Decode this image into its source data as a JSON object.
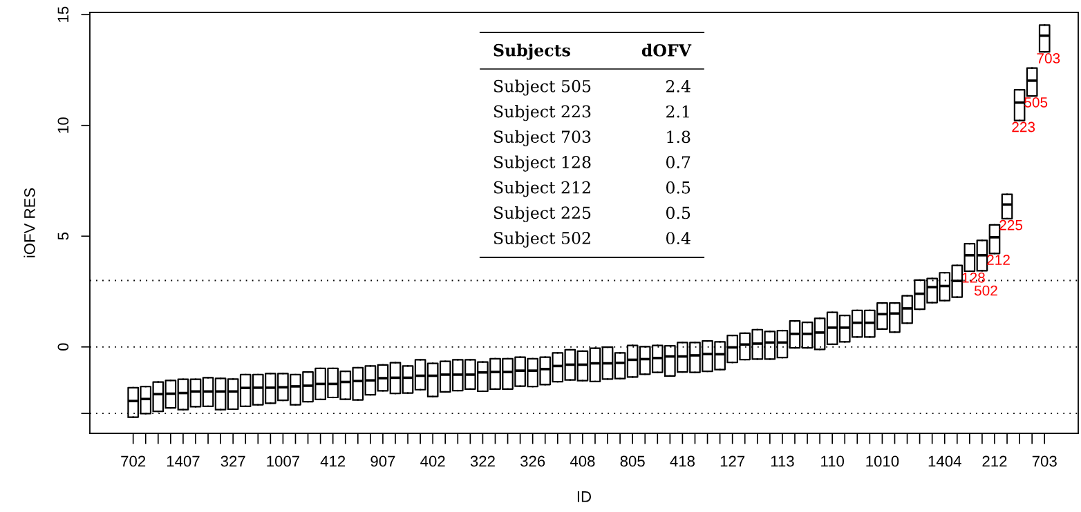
{
  "chart_data": {
    "type": "box",
    "xlabel": "ID",
    "ylabel": "iOFV RES",
    "categories": [
      "702",
      null,
      null,
      null,
      "1407",
      null,
      null,
      null,
      "327",
      null,
      null,
      null,
      "1007",
      null,
      null,
      null,
      "412",
      null,
      null,
      null,
      "907",
      null,
      null,
      null,
      "402",
      null,
      null,
      null,
      "322",
      null,
      null,
      null,
      "326",
      null,
      null,
      null,
      "408",
      null,
      null,
      null,
      "805",
      null,
      null,
      null,
      "418",
      null,
      null,
      null,
      "127",
      null,
      null,
      null,
      "113",
      null,
      null,
      null,
      "110",
      null,
      null,
      null,
      "1010",
      null,
      null,
      null,
      null,
      "1404",
      null,
      null,
      null,
      "212",
      null,
      null,
      null,
      "703"
    ],
    "boxes": [
      {
        "low": -3.17,
        "q1": -3.17,
        "median": -2.44,
        "q3": -1.84,
        "high": -1.84
      },
      {
        "low": -3.01,
        "q1": -3.01,
        "median": -2.35,
        "q3": -1.79,
        "high": -1.79
      },
      {
        "low": -2.91,
        "q1": -2.91,
        "median": -2.13,
        "q3": -1.58,
        "high": -1.58
      },
      {
        "low": -2.75,
        "q1": -2.75,
        "median": -2.11,
        "q3": -1.51,
        "high": -1.51
      },
      {
        "low": -2.83,
        "q1": -2.83,
        "median": -2.08,
        "q3": -1.46,
        "high": -1.46
      },
      {
        "low": -2.7,
        "q1": -2.7,
        "median": -2.01,
        "q3": -1.46,
        "high": -1.46
      },
      {
        "low": -2.68,
        "q1": -2.68,
        "median": -2.01,
        "q3": -1.39,
        "high": -1.39
      },
      {
        "low": -2.83,
        "q1": -2.83,
        "median": -2.01,
        "q3": -1.42,
        "high": -1.42
      },
      {
        "low": -2.81,
        "q1": -2.81,
        "median": -2.01,
        "q3": -1.45,
        "high": -1.45
      },
      {
        "low": -2.68,
        "q1": -2.68,
        "median": -1.85,
        "q3": -1.25,
        "high": -1.25
      },
      {
        "low": -2.61,
        "q1": -2.61,
        "median": -1.84,
        "q3": -1.25,
        "high": -1.25
      },
      {
        "low": -2.54,
        "q1": -2.54,
        "median": -1.84,
        "q3": -1.2,
        "high": -1.2
      },
      {
        "low": -2.41,
        "q1": -2.41,
        "median": -1.82,
        "q3": -1.2,
        "high": -1.2
      },
      {
        "low": -2.61,
        "q1": -2.61,
        "median": -1.78,
        "q3": -1.25,
        "high": -1.25
      },
      {
        "low": -2.47,
        "q1": -2.47,
        "median": -1.75,
        "q3": -1.13,
        "high": -1.13
      },
      {
        "low": -2.37,
        "q1": -2.37,
        "median": -1.67,
        "q3": -0.97,
        "high": -0.97
      },
      {
        "low": -2.28,
        "q1": -2.28,
        "median": -1.67,
        "q3": -0.97,
        "high": -0.97
      },
      {
        "low": -2.36,
        "q1": -2.36,
        "median": -1.58,
        "q3": -1.1,
        "high": -1.1
      },
      {
        "low": -2.39,
        "q1": -2.39,
        "median": -1.54,
        "q3": -0.94,
        "high": -0.94
      },
      {
        "low": -2.16,
        "q1": -2.16,
        "median": -1.51,
        "q3": -0.86,
        "high": -0.86
      },
      {
        "low": -1.98,
        "q1": -1.98,
        "median": -1.41,
        "q3": -0.81,
        "high": -0.81
      },
      {
        "low": -2.1,
        "q1": -2.1,
        "median": -1.39,
        "q3": -0.71,
        "high": -0.71
      },
      {
        "low": -2.08,
        "q1": -2.08,
        "median": -1.39,
        "q3": -0.86,
        "high": -0.86
      },
      {
        "low": -1.93,
        "q1": -1.93,
        "median": -1.3,
        "q3": -0.58,
        "high": -0.58
      },
      {
        "low": -2.24,
        "q1": -2.24,
        "median": -1.3,
        "q3": -0.74,
        "high": -0.74
      },
      {
        "low": -2.03,
        "q1": -2.03,
        "median": -1.25,
        "q3": -0.65,
        "high": -0.65
      },
      {
        "low": -1.97,
        "q1": -1.97,
        "median": -1.25,
        "q3": -0.58,
        "high": -0.58
      },
      {
        "low": -1.9,
        "q1": -1.9,
        "median": -1.25,
        "q3": -0.58,
        "high": -0.58
      },
      {
        "low": -2.0,
        "q1": -2.0,
        "median": -1.15,
        "q3": -0.68,
        "high": -0.68
      },
      {
        "low": -1.9,
        "q1": -1.9,
        "median": -1.13,
        "q3": -0.53,
        "high": -0.53
      },
      {
        "low": -1.9,
        "q1": -1.9,
        "median": -1.13,
        "q3": -0.53,
        "high": -0.53
      },
      {
        "low": -1.77,
        "q1": -1.77,
        "median": -1.07,
        "q3": -0.46,
        "high": -0.46
      },
      {
        "low": -1.79,
        "q1": -1.79,
        "median": -1.07,
        "q3": -0.53,
        "high": -0.53
      },
      {
        "low": -1.7,
        "q1": -1.7,
        "median": -1.0,
        "q3": -0.46,
        "high": -0.46
      },
      {
        "low": -1.57,
        "q1": -1.57,
        "median": -0.86,
        "q3": -0.27,
        "high": -0.27
      },
      {
        "low": -1.49,
        "q1": -1.49,
        "median": -0.8,
        "q3": -0.13,
        "high": -0.13
      },
      {
        "low": -1.52,
        "q1": -1.52,
        "median": -0.8,
        "q3": -0.19,
        "high": -0.19
      },
      {
        "low": -1.56,
        "q1": -1.56,
        "median": -0.74,
        "q3": -0.06,
        "high": -0.06
      },
      {
        "low": -1.45,
        "q1": -1.45,
        "median": -0.74,
        "q3": -0.01,
        "high": -0.01
      },
      {
        "low": -1.43,
        "q1": -1.43,
        "median": -0.72,
        "q3": -0.27,
        "high": -0.27
      },
      {
        "low": -1.36,
        "q1": -1.36,
        "median": -0.58,
        "q3": 0.07,
        "high": 0.07
      },
      {
        "low": -1.23,
        "q1": -1.23,
        "median": -0.55,
        "q3": 0.01,
        "high": 0.01
      },
      {
        "low": -1.15,
        "q1": -1.15,
        "median": -0.5,
        "q3": 0.07,
        "high": 0.07
      },
      {
        "low": -1.31,
        "q1": -1.31,
        "median": -0.43,
        "q3": 0.05,
        "high": 0.05
      },
      {
        "low": -1.13,
        "q1": -1.13,
        "median": -0.43,
        "q3": 0.2,
        "high": 0.2
      },
      {
        "low": -1.15,
        "q1": -1.15,
        "median": -0.38,
        "q3": 0.2,
        "high": 0.2
      },
      {
        "low": -1.1,
        "q1": -1.1,
        "median": -0.32,
        "q3": 0.27,
        "high": 0.27
      },
      {
        "low": -1.02,
        "q1": -1.02,
        "median": -0.33,
        "q3": 0.23,
        "high": 0.23
      },
      {
        "low": -0.7,
        "q1": -0.7,
        "median": -0.02,
        "q3": 0.52,
        "high": 0.52
      },
      {
        "low": -0.57,
        "q1": -0.57,
        "median": 0.11,
        "q3": 0.62,
        "high": 0.62
      },
      {
        "low": -0.55,
        "q1": -0.55,
        "median": 0.15,
        "q3": 0.78,
        "high": 0.78
      },
      {
        "low": -0.55,
        "q1": -0.55,
        "median": 0.2,
        "q3": 0.7,
        "high": 0.7
      },
      {
        "low": -0.48,
        "q1": -0.48,
        "median": 0.2,
        "q3": 0.74,
        "high": 0.74
      },
      {
        "low": -0.04,
        "q1": -0.04,
        "median": 0.59,
        "q3": 1.17,
        "high": 1.17
      },
      {
        "low": -0.04,
        "q1": -0.04,
        "median": 0.59,
        "q3": 1.11,
        "high": 1.11
      },
      {
        "low": -0.11,
        "q1": -0.11,
        "median": 0.65,
        "q3": 1.29,
        "high": 1.29
      },
      {
        "low": 0.12,
        "q1": 0.12,
        "median": 0.87,
        "q3": 1.56,
        "high": 1.56
      },
      {
        "low": 0.23,
        "q1": 0.23,
        "median": 0.87,
        "q3": 1.42,
        "high": 1.42
      },
      {
        "low": 0.45,
        "q1": 0.45,
        "median": 1.09,
        "q3": 1.65,
        "high": 1.65
      },
      {
        "low": 0.45,
        "q1": 0.45,
        "median": 1.09,
        "q3": 1.65,
        "high": 1.65
      },
      {
        "low": 0.81,
        "q1": 0.81,
        "median": 1.48,
        "q3": 1.98,
        "high": 1.98
      },
      {
        "low": 0.67,
        "q1": 0.67,
        "median": 1.51,
        "q3": 1.98,
        "high": 1.98
      },
      {
        "low": 1.07,
        "q1": 1.07,
        "median": 1.74,
        "q3": 2.31,
        "high": 2.31
      },
      {
        "low": 1.7,
        "q1": 1.7,
        "median": 2.4,
        "q3": 3.02,
        "high": 3.02
      },
      {
        "low": 2.0,
        "q1": 2.0,
        "median": 2.7,
        "q3": 3.09,
        "high": 3.09
      },
      {
        "low": 2.09,
        "q1": 2.09,
        "median": 2.75,
        "q3": 3.35,
        "high": 3.35
      },
      {
        "low": 2.25,
        "q1": 2.25,
        "median": 2.98,
        "q3": 3.68,
        "high": 3.68
      },
      {
        "low": 3.42,
        "q1": 3.42,
        "median": 4.14,
        "q3": 4.66,
        "high": 4.66
      },
      {
        "low": 3.44,
        "q1": 3.44,
        "median": 4.14,
        "q3": 4.81,
        "high": 4.81
      },
      {
        "low": 4.22,
        "q1": 4.22,
        "median": 4.95,
        "q3": 5.51,
        "high": 5.51
      },
      {
        "low": 5.79,
        "q1": 5.79,
        "median": 6.43,
        "q3": 6.89,
        "high": 6.89
      },
      {
        "low": 10.22,
        "q1": 10.22,
        "median": 11.03,
        "q3": 11.61,
        "high": 11.61
      },
      {
        "low": 11.33,
        "q1": 11.33,
        "median": 12.02,
        "q3": 12.59,
        "high": 12.59
      },
      {
        "low": 13.32,
        "q1": 13.32,
        "median": 14.05,
        "q3": 14.53,
        "high": 14.53
      }
    ],
    "ylim": [
      -3.9,
      15.1
    ],
    "yticks": [
      {
        "value": -3,
        "label": null
      },
      0,
      5,
      10,
      15
    ],
    "ref_lines": [
      {
        "axis": "y",
        "value": 3,
        "color": "#000000",
        "line_style": "dotted"
      },
      {
        "axis": "y",
        "value": 0,
        "color": "#000000",
        "line_style": "dotted"
      },
      {
        "axis": "y",
        "value": -3,
        "color": "#000000",
        "line_style": "dotted"
      }
    ],
    "annotations": [
      "Subjects",
      "dOFV",
      "Subject 505",
      "2.4",
      "Subject 223",
      "2.1",
      "Subject 703",
      "1.8",
      "Subject 128",
      "0.7",
      "Subject 212",
      "0.5",
      "Subject 225",
      "0.5",
      "Subject 502",
      "0.4",
      {
        "text": "703",
        "x": "703",
        "y": 13.32
      },
      {
        "text": "505",
        "y": 11.33
      },
      {
        "text": "223",
        "y": 10.22
      },
      {
        "text": "225",
        "y": 5.79
      },
      {
        "text": "212",
        "x": "212",
        "y": 4.22
      },
      {
        "text": "128",
        "y": 3.42
      },
      {
        "text": "502",
        "y": 3.44
      }
    ],
    "grid": false
  }
}
